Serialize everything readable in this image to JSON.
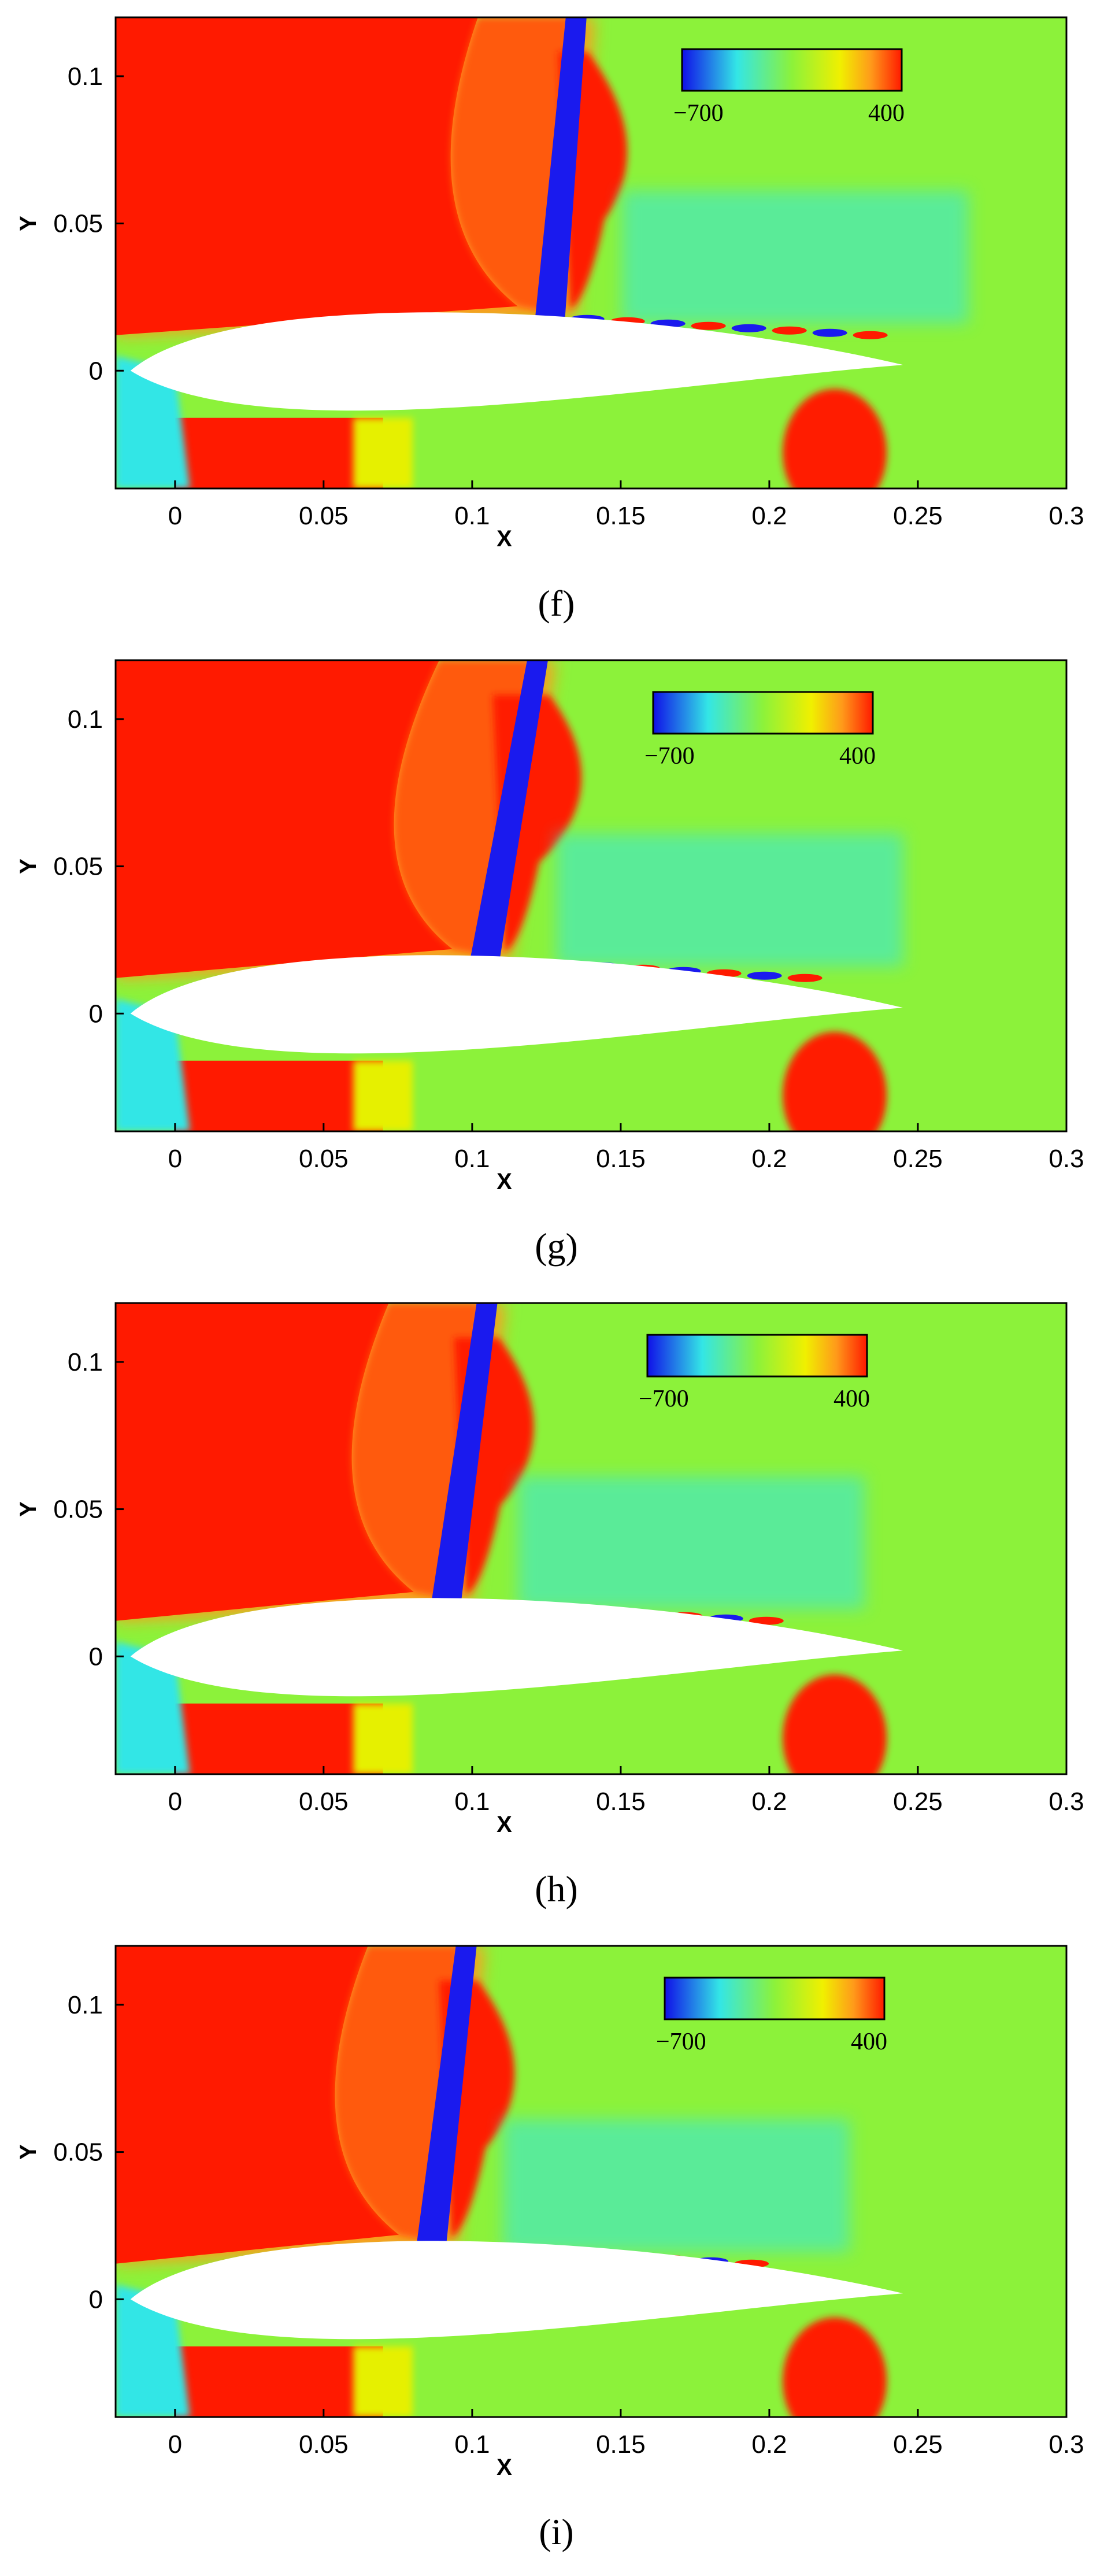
{
  "chart_data": [
    {
      "type": "heatmap",
      "caption": "(f)",
      "xlabel": "X",
      "ylabel": "Y",
      "xlim": [
        -0.02,
        0.3
      ],
      "ylim": [
        -0.04,
        0.12
      ],
      "xticks": [
        "0",
        "0.05",
        "0.1",
        "0.15",
        "0.2",
        "0.25",
        "0.3"
      ],
      "xtick_values": [
        0,
        0.05,
        0.1,
        0.15,
        0.2,
        0.25,
        0.3
      ],
      "yticks": [
        "0",
        "0.05",
        "0.1"
      ],
      "ytick_values": [
        0,
        0.05,
        0.1
      ],
      "colorbar": {
        "min_label": "−700",
        "max_label": "400",
        "min": -700,
        "max": 400
      },
      "shock_x_at_surface": 0.127,
      "shock_x_at_top": 0.135
    },
    {
      "type": "heatmap",
      "caption": "(g)",
      "xlabel": "X",
      "ylabel": "Y",
      "xlim": [
        -0.02,
        0.3
      ],
      "ylim": [
        -0.04,
        0.12
      ],
      "xticks": [
        "0",
        "0.05",
        "0.1",
        "0.15",
        "0.2",
        "0.25",
        "0.3"
      ],
      "xtick_values": [
        0,
        0.05,
        0.1,
        0.15,
        0.2,
        0.25,
        0.3
      ],
      "yticks": [
        "0",
        "0.05",
        "0.1"
      ],
      "ytick_values": [
        0,
        0.05,
        0.1
      ],
      "colorbar": {
        "min_label": "−700",
        "max_label": "400",
        "min": -700,
        "max": 400
      },
      "shock_x_at_surface": 0.105,
      "shock_x_at_top": 0.122
    },
    {
      "type": "heatmap",
      "caption": "(h)",
      "xlabel": "X",
      "ylabel": "Y",
      "xlim": [
        -0.02,
        0.3
      ],
      "ylim": [
        -0.04,
        0.12
      ],
      "xticks": [
        "0",
        "0.05",
        "0.1",
        "0.15",
        "0.2",
        "0.25",
        "0.3"
      ],
      "xtick_values": [
        0,
        0.05,
        0.1,
        0.15,
        0.2,
        0.25,
        0.3
      ],
      "yticks": [
        "0",
        "0.05",
        "0.1"
      ],
      "ytick_values": [
        0,
        0.05,
        0.1
      ],
      "colorbar": {
        "min_label": "−700",
        "max_label": "400",
        "min": -700,
        "max": 400
      },
      "shock_x_at_surface": 0.092,
      "shock_x_at_top": 0.105
    },
    {
      "type": "heatmap",
      "caption": "(i)",
      "xlabel": "X",
      "ylabel": "Y",
      "xlim": [
        -0.02,
        0.3
      ],
      "ylim": [
        -0.04,
        0.12
      ],
      "xticks": [
        "0",
        "0.05",
        "0.1",
        "0.15",
        "0.2",
        "0.25",
        "0.3"
      ],
      "xtick_values": [
        0,
        0.05,
        0.1,
        0.15,
        0.2,
        0.25,
        0.3
      ],
      "yticks": [
        "0",
        "0.05",
        "0.1"
      ],
      "ytick_values": [
        0,
        0.05,
        0.1
      ],
      "colorbar": {
        "min_label": "−700",
        "max_label": "400",
        "min": -700,
        "max": 400
      },
      "shock_x_at_surface": 0.087,
      "shock_x_at_top": 0.098
    }
  ],
  "colors": {
    "red": "#ff1a00",
    "orange": "#ff9a1a",
    "yellow": "#e6f000",
    "green": "#8cf23a",
    "cyan": "#33e6e6",
    "blue": "#1a1aee",
    "background": "#ffffff"
  }
}
